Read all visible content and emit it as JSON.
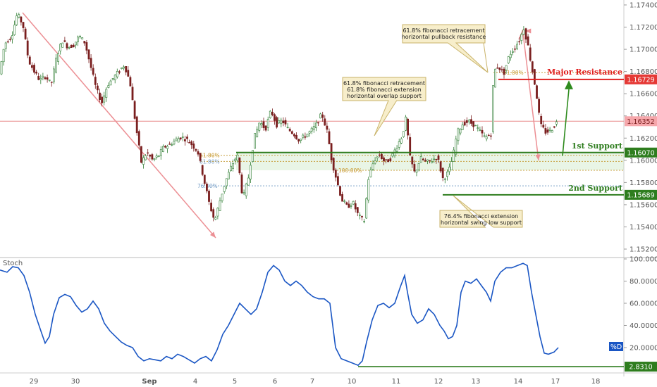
{
  "chart_data": [
    {
      "type": "candlestick",
      "ylim": [
        1.1515,
        1.1745
      ],
      "y_ticks": [
        "1.17400",
        "1.17200",
        "1.17000",
        "1.16800",
        "1.16600",
        "1.16400",
        "1.16200",
        "1.16000",
        "1.15800",
        "1.15600",
        "1.15400",
        "1.15200"
      ],
      "x_ticks": [
        "29",
        "30",
        "Sep",
        "4",
        "5",
        "6",
        "7",
        "10",
        "11",
        "12",
        "13",
        "14",
        "17",
        "18"
      ],
      "current_price": {
        "label": "1.16352",
        "value": 1.16352
      },
      "price_path": [
        [
          0,
          1.1676
        ],
        [
          8,
          1.1705
        ],
        [
          18,
          1.1712
        ],
        [
          26,
          1.1732
        ],
        [
          34,
          1.1722
        ],
        [
          42,
          1.169
        ],
        [
          50,
          1.168
        ],
        [
          58,
          1.1672
        ],
        [
          66,
          1.1676
        ],
        [
          74,
          1.1668
        ],
        [
          82,
          1.1694
        ],
        [
          90,
          1.1708
        ],
        [
          98,
          1.1702
        ],
        [
          106,
          1.1704
        ],
        [
          114,
          1.1712
        ],
        [
          122,
          1.1706
        ],
        [
          130,
          1.1685
        ],
        [
          138,
          1.1664
        ],
        [
          146,
          1.1652
        ],
        [
          154,
          1.1668
        ],
        [
          162,
          1.1674
        ],
        [
          170,
          1.168
        ],
        [
          178,
          1.1686
        ],
        [
          186,
          1.167
        ],
        [
          194,
          1.1632
        ],
        [
          202,
          1.1598
        ],
        [
          210,
          1.1607
        ],
        [
          218,
          1.16
        ],
        [
          226,
          1.1604
        ],
        [
          234,
          1.1612
        ],
        [
          242,
          1.1614
        ],
        [
          250,
          1.1618
        ],
        [
          258,
          1.1621
        ],
        [
          266,
          1.1619
        ],
        [
          274,
          1.1614
        ],
        [
          282,
          1.1608
        ],
        [
          290,
          1.1585
        ],
        [
          298,
          1.1562
        ],
        [
          306,
          1.1545
        ],
        [
          314,
          1.1565
        ],
        [
          322,
          1.1582
        ],
        [
          330,
          1.1595
        ],
        [
          338,
          1.1605
        ],
        [
          346,
          1.1565
        ],
        [
          354,
          1.1585
        ],
        [
          362,
          1.162
        ],
        [
          370,
          1.1635
        ],
        [
          378,
          1.1628
        ],
        [
          386,
          1.1645
        ],
        [
          394,
          1.1632
        ],
        [
          402,
          1.1636
        ],
        [
          410,
          1.1628
        ],
        [
          418,
          1.1624
        ],
        [
          426,
          1.1618
        ],
        [
          434,
          1.1622
        ],
        [
          442,
          1.1626
        ],
        [
          450,
          1.1632
        ],
        [
          458,
          1.1642
        ],
        [
          466,
          1.1625
        ],
        [
          472,
          1.16
        ],
        [
          478,
          1.1585
        ],
        [
          486,
          1.1565
        ],
        [
          494,
          1.1558
        ],
        [
          502,
          1.1562
        ],
        [
          510,
          1.155
        ],
        [
          518,
          1.1545
        ],
        [
          524,
          1.1583
        ],
        [
          532,
          1.16
        ],
        [
          540,
          1.1605
        ],
        [
          548,
          1.1598
        ],
        [
          556,
          1.1602
        ],
        [
          564,
          1.1612
        ],
        [
          572,
          1.1622
        ],
        [
          578,
          1.164
        ],
        [
          582,
          1.1605
        ],
        [
          590,
          1.1588
        ],
        [
          598,
          1.1602
        ],
        [
          606,
          1.1598
        ],
        [
          614,
          1.16
        ],
        [
          622,
          1.1603
        ],
        [
          630,
          1.1583
        ],
        [
          638,
          1.159
        ],
        [
          644,
          1.1603
        ],
        [
          650,
          1.1625
        ],
        [
          658,
          1.1633
        ],
        [
          666,
          1.1635
        ],
        [
          674,
          1.1632
        ],
        [
          682,
          1.1626
        ],
        [
          690,
          1.162
        ],
        [
          698,
          1.1624
        ],
        [
          702,
          1.168
        ],
        [
          708,
          1.1685
        ],
        [
          716,
          1.1678
        ],
        [
          724,
          1.1695
        ],
        [
          732,
          1.1702
        ],
        [
          740,
          1.171
        ],
        [
          744,
          1.172
        ],
        [
          750,
          1.1705
        ],
        [
          756,
          1.1683
        ],
        [
          762,
          1.1662
        ],
        [
          768,
          1.1632
        ],
        [
          776,
          1.1625
        ],
        [
          784,
          1.1628
        ],
        [
          792,
          1.1635
        ]
      ],
      "annotations": [
        {
          "text": [
            "61.8% fibonacci retracement",
            "horizontal pullback resistance"
          ]
        },
        {
          "text": [
            "61.8% fibonacci retracement",
            "61.8% fibonacci extension",
            "horizontal overlap support"
          ]
        },
        {
          "text": [
            "76.4% fibonacci extension",
            "horizontal swing low support"
          ]
        }
      ],
      "levels": [
        {
          "name": "Major Resistance",
          "value_label": "1.16729",
          "value": 1.16729,
          "color": "#e02020"
        },
        {
          "name": "1st Support",
          "value_label": "1.16070",
          "value": 1.1607,
          "color": "#2e7d1e"
        },
        {
          "name": "2nd Support",
          "value_label": "1.15689",
          "value": 1.15689,
          "color": "#2e7d1e"
        }
      ],
      "fib_labels": [
        "61.80%",
        "61.80%",
        "76.40%",
        "100.00%",
        "61.80%"
      ]
    },
    {
      "type": "line",
      "title": "Stoch",
      "ylim": [
        0,
        100
      ],
      "y_ticks": [
        "100.0000",
        "80.0000",
        "60.0000",
        "40.0000",
        "20.0000"
      ],
      "series": [
        {
          "name": "%D",
          "values": [
            [
              0,
              90
            ],
            [
              10,
              88
            ],
            [
              18,
              93
            ],
            [
              26,
              92
            ],
            [
              34,
              85
            ],
            [
              42,
              70
            ],
            [
              50,
              50
            ],
            [
              58,
              35
            ],
            [
              64,
              24
            ],
            [
              70,
              30
            ],
            [
              76,
              50
            ],
            [
              84,
              65
            ],
            [
              92,
              68
            ],
            [
              100,
              66
            ],
            [
              108,
              58
            ],
            [
              116,
              52
            ],
            [
              124,
              55
            ],
            [
              132,
              62
            ],
            [
              140,
              55
            ],
            [
              148,
              42
            ],
            [
              156,
              35
            ],
            [
              164,
              30
            ],
            [
              172,
              25
            ],
            [
              180,
              22
            ],
            [
              188,
              20
            ],
            [
              196,
              12
            ],
            [
              204,
              8
            ],
            [
              212,
              10
            ],
            [
              220,
              9
            ],
            [
              228,
              8
            ],
            [
              236,
              12
            ],
            [
              244,
              10
            ],
            [
              252,
              14
            ],
            [
              260,
              12
            ],
            [
              268,
              9
            ],
            [
              276,
              6
            ],
            [
              284,
              10
            ],
            [
              292,
              12
            ],
            [
              300,
              8
            ],
            [
              308,
              18
            ],
            [
              316,
              32
            ],
            [
              324,
              40
            ],
            [
              332,
              50
            ],
            [
              340,
              60
            ],
            [
              348,
              55
            ],
            [
              356,
              50
            ],
            [
              364,
              55
            ],
            [
              372,
              70
            ],
            [
              380,
              88
            ],
            [
              388,
              94
            ],
            [
              396,
              90
            ],
            [
              404,
              80
            ],
            [
              412,
              76
            ],
            [
              420,
              80
            ],
            [
              428,
              76
            ],
            [
              436,
              70
            ],
            [
              444,
              66
            ],
            [
              452,
              64
            ],
            [
              460,
              64
            ],
            [
              468,
              60
            ],
            [
              472,
              40
            ],
            [
              476,
              20
            ],
            [
              484,
              10
            ],
            [
              492,
              8
            ],
            [
              500,
              6
            ],
            [
              508,
              4
            ],
            [
              514,
              8
            ],
            [
              520,
              25
            ],
            [
              528,
              45
            ],
            [
              536,
              58
            ],
            [
              544,
              60
            ],
            [
              552,
              56
            ],
            [
              560,
              60
            ],
            [
              568,
              75
            ],
            [
              574,
              85
            ],
            [
              578,
              70
            ],
            [
              584,
              50
            ],
            [
              592,
              42
            ],
            [
              600,
              45
            ],
            [
              608,
              55
            ],
            [
              616,
              50
            ],
            [
              624,
              40
            ],
            [
              630,
              35
            ],
            [
              636,
              28
            ],
            [
              642,
              30
            ],
            [
              648,
              40
            ],
            [
              654,
              70
            ],
            [
              660,
              80
            ],
            [
              668,
              78
            ],
            [
              676,
              82
            ],
            [
              684,
              75
            ],
            [
              690,
              70
            ],
            [
              696,
              62
            ],
            [
              702,
              80
            ],
            [
              710,
              88
            ],
            [
              718,
              92
            ],
            [
              726,
              92
            ],
            [
              734,
              94
            ],
            [
              742,
              96
            ],
            [
              748,
              94
            ],
            [
              754,
              70
            ],
            [
              760,
              50
            ],
            [
              766,
              30
            ],
            [
              772,
              15
            ],
            [
              778,
              14
            ],
            [
              786,
              16
            ],
            [
              792,
              20
            ]
          ]
        }
      ],
      "level": {
        "value_label": "2.8310",
        "value": 2.831
      }
    }
  ]
}
